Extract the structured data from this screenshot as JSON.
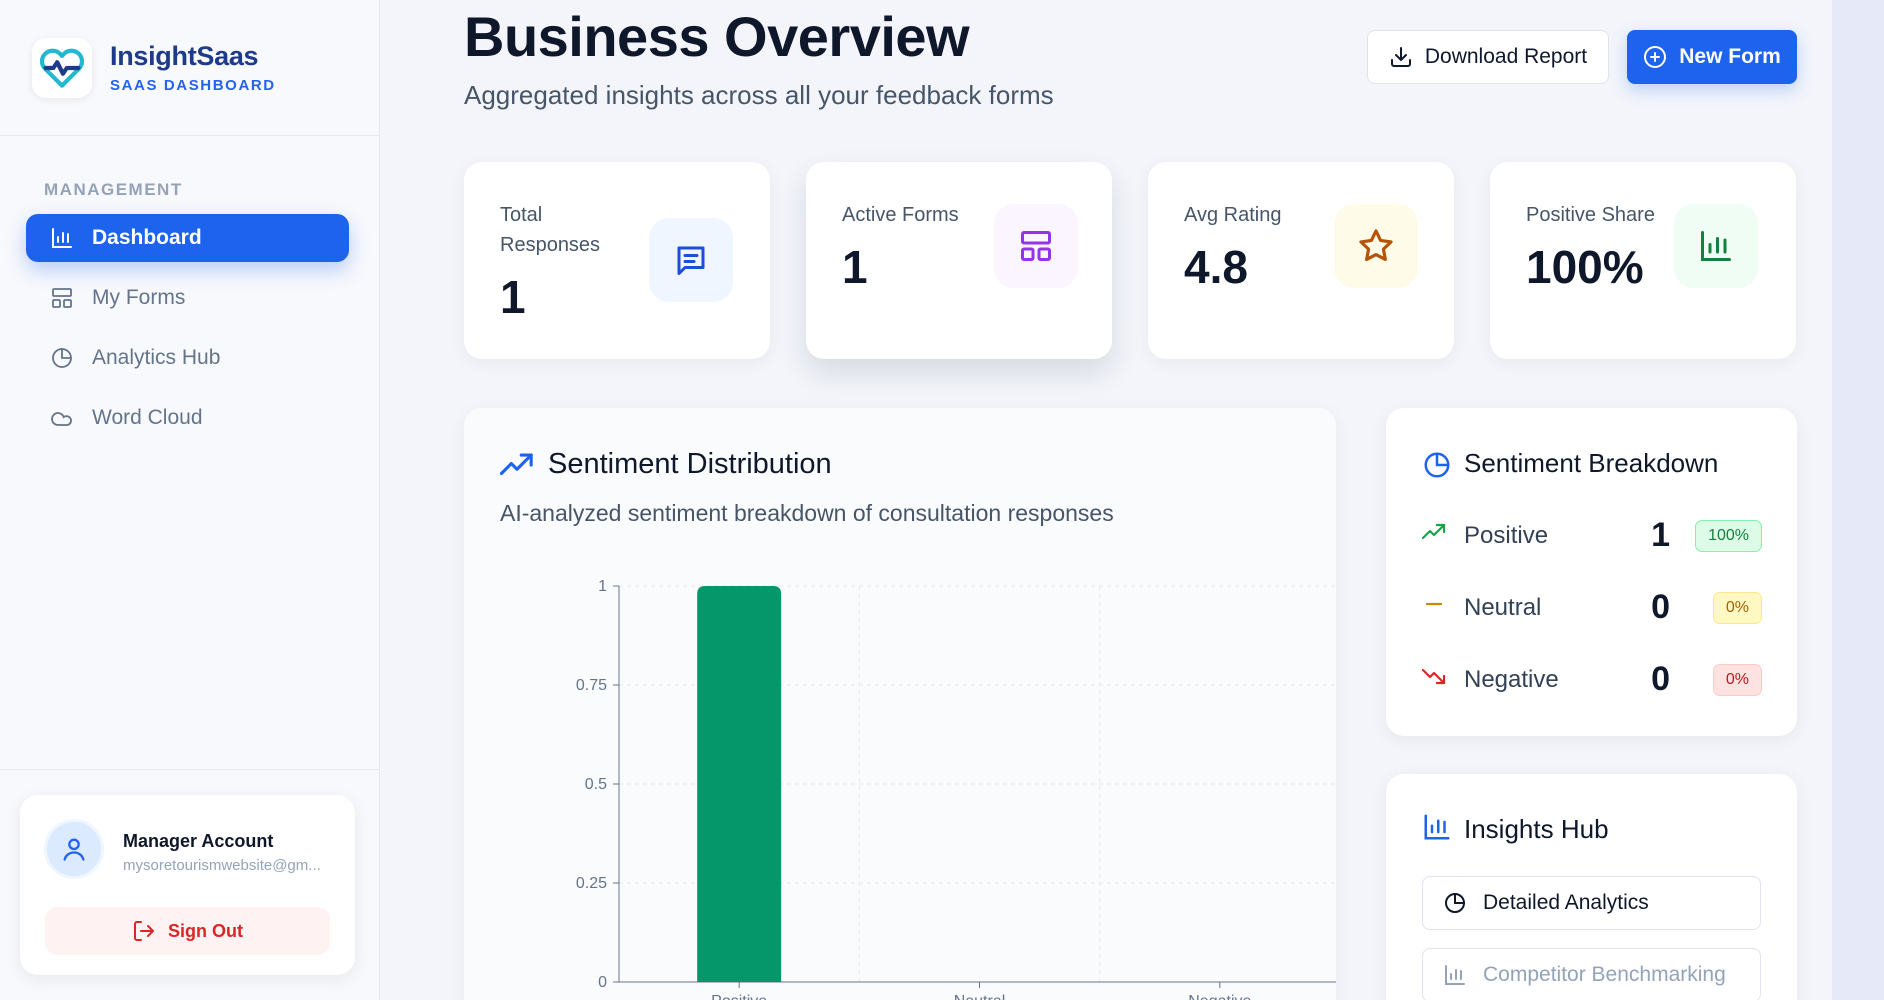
{
  "brand": {
    "name": "InsightSaas",
    "subtitle": "SAAS DASHBOARD",
    "logo_icon": "heart-pulse-icon",
    "accent": "#22b8cf"
  },
  "sidebar": {
    "heading": "MANAGEMENT",
    "items": [
      {
        "label": "Dashboard",
        "icon": "bar-chart-icon",
        "active": true
      },
      {
        "label": "My Forms",
        "icon": "layout-icon",
        "active": false
      },
      {
        "label": "Analytics Hub",
        "icon": "pie-chart-icon",
        "active": false
      },
      {
        "label": "Word Cloud",
        "icon": "cloud-icon",
        "active": false
      }
    ],
    "account": {
      "name": "Manager Account",
      "email": "mysoretourismwebsite@gm...",
      "signout_label": "Sign Out"
    }
  },
  "header": {
    "title": "Business Overview",
    "subtitle": "Aggregated insights across all your feedback forms",
    "download_label": "Download Report",
    "new_form_label": "New Form"
  },
  "stats": [
    {
      "label": "Total Responses",
      "value": "1",
      "icon": "message-icon",
      "color": "#1d4ed8",
      "bg": "#eff6ff"
    },
    {
      "label": "Active Forms",
      "value": "1",
      "icon": "layout-icon",
      "color": "#9333ea",
      "bg": "#faf5ff"
    },
    {
      "label": "Avg Rating",
      "value": "4.8",
      "icon": "star-icon",
      "color": "#b45309",
      "bg": "#fefce8"
    },
    {
      "label": "Positive Share",
      "value": "100%",
      "icon": "bar-chart-icon",
      "color": "#15803d",
      "bg": "#f0fdf4"
    }
  ],
  "sentiment_distribution": {
    "title": "Sentiment Distribution",
    "subtitle": "AI-analyzed sentiment breakdown of consultation responses"
  },
  "chart_data": {
    "type": "bar",
    "categories": [
      "Positive",
      "Neutral",
      "Negative"
    ],
    "values": [
      1,
      0,
      0
    ],
    "ylim": [
      0,
      1
    ],
    "yticks": [
      "0",
      "0.25",
      "0.5",
      "0.75",
      "1"
    ],
    "grid": true,
    "colors": {
      "Positive": "#059669"
    }
  },
  "breakdown": {
    "title": "Sentiment Breakdown",
    "rows": [
      {
        "label": "Positive",
        "count": "1",
        "pct": "100%",
        "color": "#16a34a",
        "badge_bg": "#dcfce7",
        "badge_border": "#86efac",
        "icon": "trend-up-icon"
      },
      {
        "label": "Neutral",
        "count": "0",
        "pct": "0%",
        "color": "#ca8a04",
        "badge_bg": "#fef9c3",
        "badge_border": "#fde68a",
        "icon": "minus-icon"
      },
      {
        "label": "Negative",
        "count": "0",
        "pct": "0%",
        "color": "#dc2626",
        "badge_bg": "#fee2e2",
        "badge_border": "#fecaca",
        "icon": "trend-down-icon"
      }
    ]
  },
  "insights_hub": {
    "title": "Insights Hub",
    "buttons": [
      {
        "label": "Detailed Analytics",
        "icon": "pie-chart-icon"
      },
      {
        "label": "Competitor Benchmarking",
        "icon": "bar-chart-icon"
      }
    ]
  }
}
